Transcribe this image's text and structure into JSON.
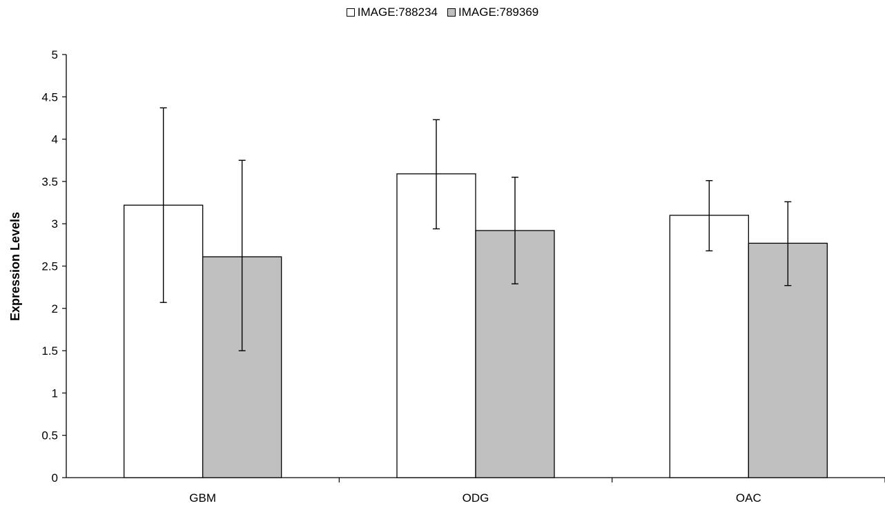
{
  "chart_data": {
    "type": "bar",
    "ylabel": "Expression Levels",
    "xlabel": "",
    "ylim": [
      0,
      5
    ],
    "yticks": [
      "0",
      "0.5",
      "1",
      "1.5",
      "2",
      "2.5",
      "3",
      "3.5",
      "4",
      "4.5",
      "5"
    ],
    "categories": [
      "GBM",
      "ODG",
      "OAC"
    ],
    "legend_position": "top-center",
    "grid": false,
    "series": [
      {
        "name": "IMAGE:788234",
        "color": "#ffffff",
        "values": [
          3.22,
          3.59,
          3.1
        ],
        "error_low": [
          2.07,
          2.94,
          2.68
        ],
        "error_high": [
          4.37,
          4.23,
          3.51
        ]
      },
      {
        "name": "IMAGE:789369",
        "color": "#c0c0c0",
        "values": [
          2.61,
          2.92,
          2.77
        ],
        "error_low": [
          1.5,
          2.29,
          2.27
        ],
        "error_high": [
          3.75,
          3.55,
          3.26
        ]
      }
    ]
  }
}
